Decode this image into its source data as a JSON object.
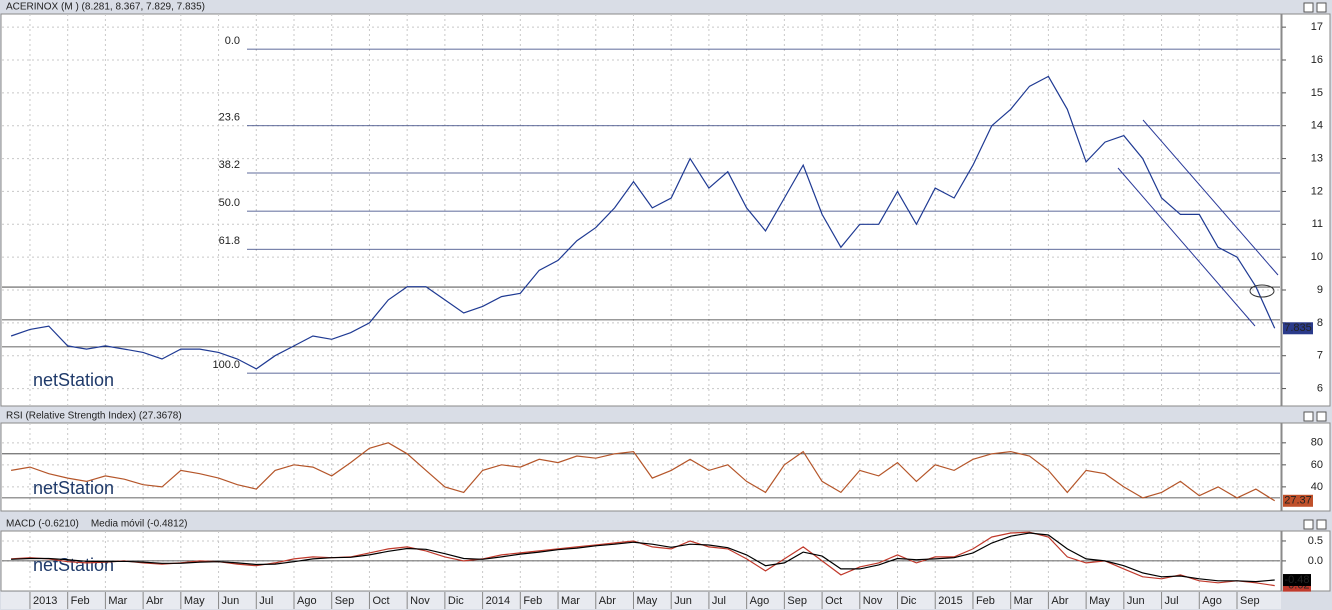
{
  "chart_data": [
    {
      "type": "line",
      "title": "ACERINOX (M ) (8.281, 8.367, 7.829, 7.835)",
      "watermark": "netStation",
      "ylim": [
        5.5,
        17.4
      ],
      "yticks": [
        6,
        7,
        8,
        9,
        10,
        11,
        12,
        13,
        14,
        15,
        16,
        17
      ],
      "grid": true,
      "series": [
        {
          "color": "#1f3a93",
          "values": [
            7.6,
            7.8,
            7.9,
            7.3,
            7.2,
            7.3,
            7.2,
            7.1,
            6.9,
            7.2,
            7.2,
            7.1,
            6.9,
            6.6,
            7.0,
            7.3,
            7.6,
            7.5,
            7.7,
            8.0,
            8.7,
            9.1,
            9.1,
            8.7,
            8.3,
            8.5,
            8.8,
            8.9,
            9.6,
            9.9,
            10.5,
            10.9,
            11.5,
            12.3,
            11.5,
            11.8,
            13.0,
            12.1,
            12.6,
            11.5,
            10.8,
            11.8,
            12.8,
            11.3,
            10.3,
            11.0,
            11.0,
            12.0,
            11.0,
            12.1,
            11.8,
            12.8,
            14.0,
            14.5,
            15.2,
            15.5,
            14.5,
            12.9,
            13.5,
            13.7,
            13.0,
            11.8,
            11.3,
            11.3,
            10.3,
            10.0,
            9.1,
            7.835
          ]
        }
      ],
      "fib_levels": [
        {
          "value": 16.33,
          "label": "0.0"
        },
        {
          "value": 14.0,
          "label": "23.6"
        },
        {
          "value": 12.56,
          "label": "38.2"
        },
        {
          "value": 11.4,
          "label": "50.0"
        },
        {
          "value": 10.24,
          "label": "61.8"
        },
        {
          "value": 6.47,
          "label": "100.0"
        }
      ],
      "levels": [
        9.09,
        8.09,
        7.27
      ],
      "last_value": 7.835,
      "last_color": "#2a3a8a"
    },
    {
      "type": "line",
      "title": "RSI (Relative Strength Index) (27.3678)",
      "watermark": "netStation",
      "ylim": [
        19,
        98
      ],
      "yticks": [
        40,
        60,
        80
      ],
      "grid": true,
      "series": [
        {
          "color": "#b5562a",
          "values": [
            55,
            58,
            52,
            48,
            45,
            50,
            47,
            42,
            40,
            55,
            52,
            48,
            42,
            38,
            55,
            60,
            58,
            50,
            62,
            75,
            80,
            70,
            55,
            40,
            35,
            55,
            60,
            58,
            65,
            62,
            68,
            66,
            70,
            72,
            48,
            55,
            65,
            55,
            60,
            45,
            35,
            60,
            72,
            45,
            35,
            55,
            50,
            62,
            45,
            60,
            55,
            65,
            70,
            72,
            68,
            55,
            35,
            55,
            52,
            40,
            30,
            35,
            45,
            32,
            40,
            30,
            38,
            27.37
          ]
        }
      ],
      "levels": [
        70,
        30
      ],
      "last_value": 27.37,
      "last_color": "#c0502a"
    },
    {
      "type": "line",
      "watermark": "netStation",
      "ylim": [
        -0.73,
        0.75
      ],
      "yticks": [
        {
          "value": 0,
          "label": "0.0"
        },
        0.5
      ],
      "grid": true,
      "categories": [
        null,
        "2013",
        null,
        "Feb",
        null,
        "Mar",
        null,
        "Abr",
        null,
        "May",
        null,
        "Jun",
        null,
        "Jul",
        null,
        "Ago",
        null,
        "Sep",
        null,
        "Oct",
        null,
        "Nov",
        null,
        "Dic",
        null,
        "2014",
        null,
        "Feb",
        null,
        "Mar",
        null,
        "Abr",
        null,
        "May",
        null,
        "Jun",
        null,
        "Jul",
        null,
        "Ago",
        null,
        "Sep",
        null,
        "Oct",
        null,
        "Nov",
        null,
        "Dic",
        null,
        "2015",
        null,
        "Feb",
        null,
        "Mar",
        null,
        "Abr",
        null,
        "May",
        null,
        "Jun",
        null,
        "Jul",
        null,
        "Ago",
        null,
        "Sep",
        null,
        null
      ],
      "series": [
        {
          "name": "MACD (-0.6210)",
          "color": "#c0392b",
          "last_value": -0.62,
          "values": [
            0.05,
            0.08,
            0.05,
            -0.02,
            -0.05,
            -0.03,
            0.0,
            -0.05,
            -0.08,
            -0.05,
            0.0,
            -0.02,
            -0.08,
            -0.12,
            -0.05,
            0.05,
            0.1,
            0.08,
            0.1,
            0.2,
            0.3,
            0.35,
            0.25,
            0.1,
            0.0,
            0.05,
            0.15,
            0.2,
            0.25,
            0.3,
            0.35,
            0.4,
            0.45,
            0.5,
            0.35,
            0.3,
            0.5,
            0.35,
            0.3,
            0.05,
            -0.25,
            0.05,
            0.35,
            0.0,
            -0.35,
            -0.15,
            -0.05,
            0.15,
            -0.05,
            0.1,
            0.1,
            0.3,
            0.6,
            0.7,
            0.72,
            0.6,
            0.1,
            -0.05,
            0.0,
            -0.2,
            -0.4,
            -0.45,
            -0.35,
            -0.5,
            -0.55,
            -0.5,
            -0.55,
            -0.62
          ]
        },
        {
          "name": "Media móvil (-0.4812)",
          "color": "#000000",
          "last_value": -0.48,
          "values": [
            0.04,
            0.06,
            0.06,
            0.03,
            -0.01,
            -0.02,
            -0.01,
            -0.03,
            -0.06,
            -0.06,
            -0.03,
            -0.02,
            -0.05,
            -0.09,
            -0.08,
            -0.02,
            0.05,
            0.08,
            0.09,
            0.15,
            0.24,
            0.31,
            0.29,
            0.18,
            0.06,
            0.04,
            0.1,
            0.17,
            0.22,
            0.28,
            0.32,
            0.38,
            0.42,
            0.47,
            0.42,
            0.34,
            0.42,
            0.4,
            0.33,
            0.15,
            -0.12,
            -0.05,
            0.22,
            0.12,
            -0.2,
            -0.2,
            -0.1,
            0.06,
            0.03,
            0.05,
            0.08,
            0.2,
            0.45,
            0.62,
            0.7,
            0.65,
            0.3,
            0.05,
            0.0,
            -0.12,
            -0.3,
            -0.4,
            -0.38,
            -0.45,
            -0.5,
            -0.5,
            -0.52,
            -0.48
          ]
        }
      ],
      "levels": [
        0
      ]
    }
  ]
}
